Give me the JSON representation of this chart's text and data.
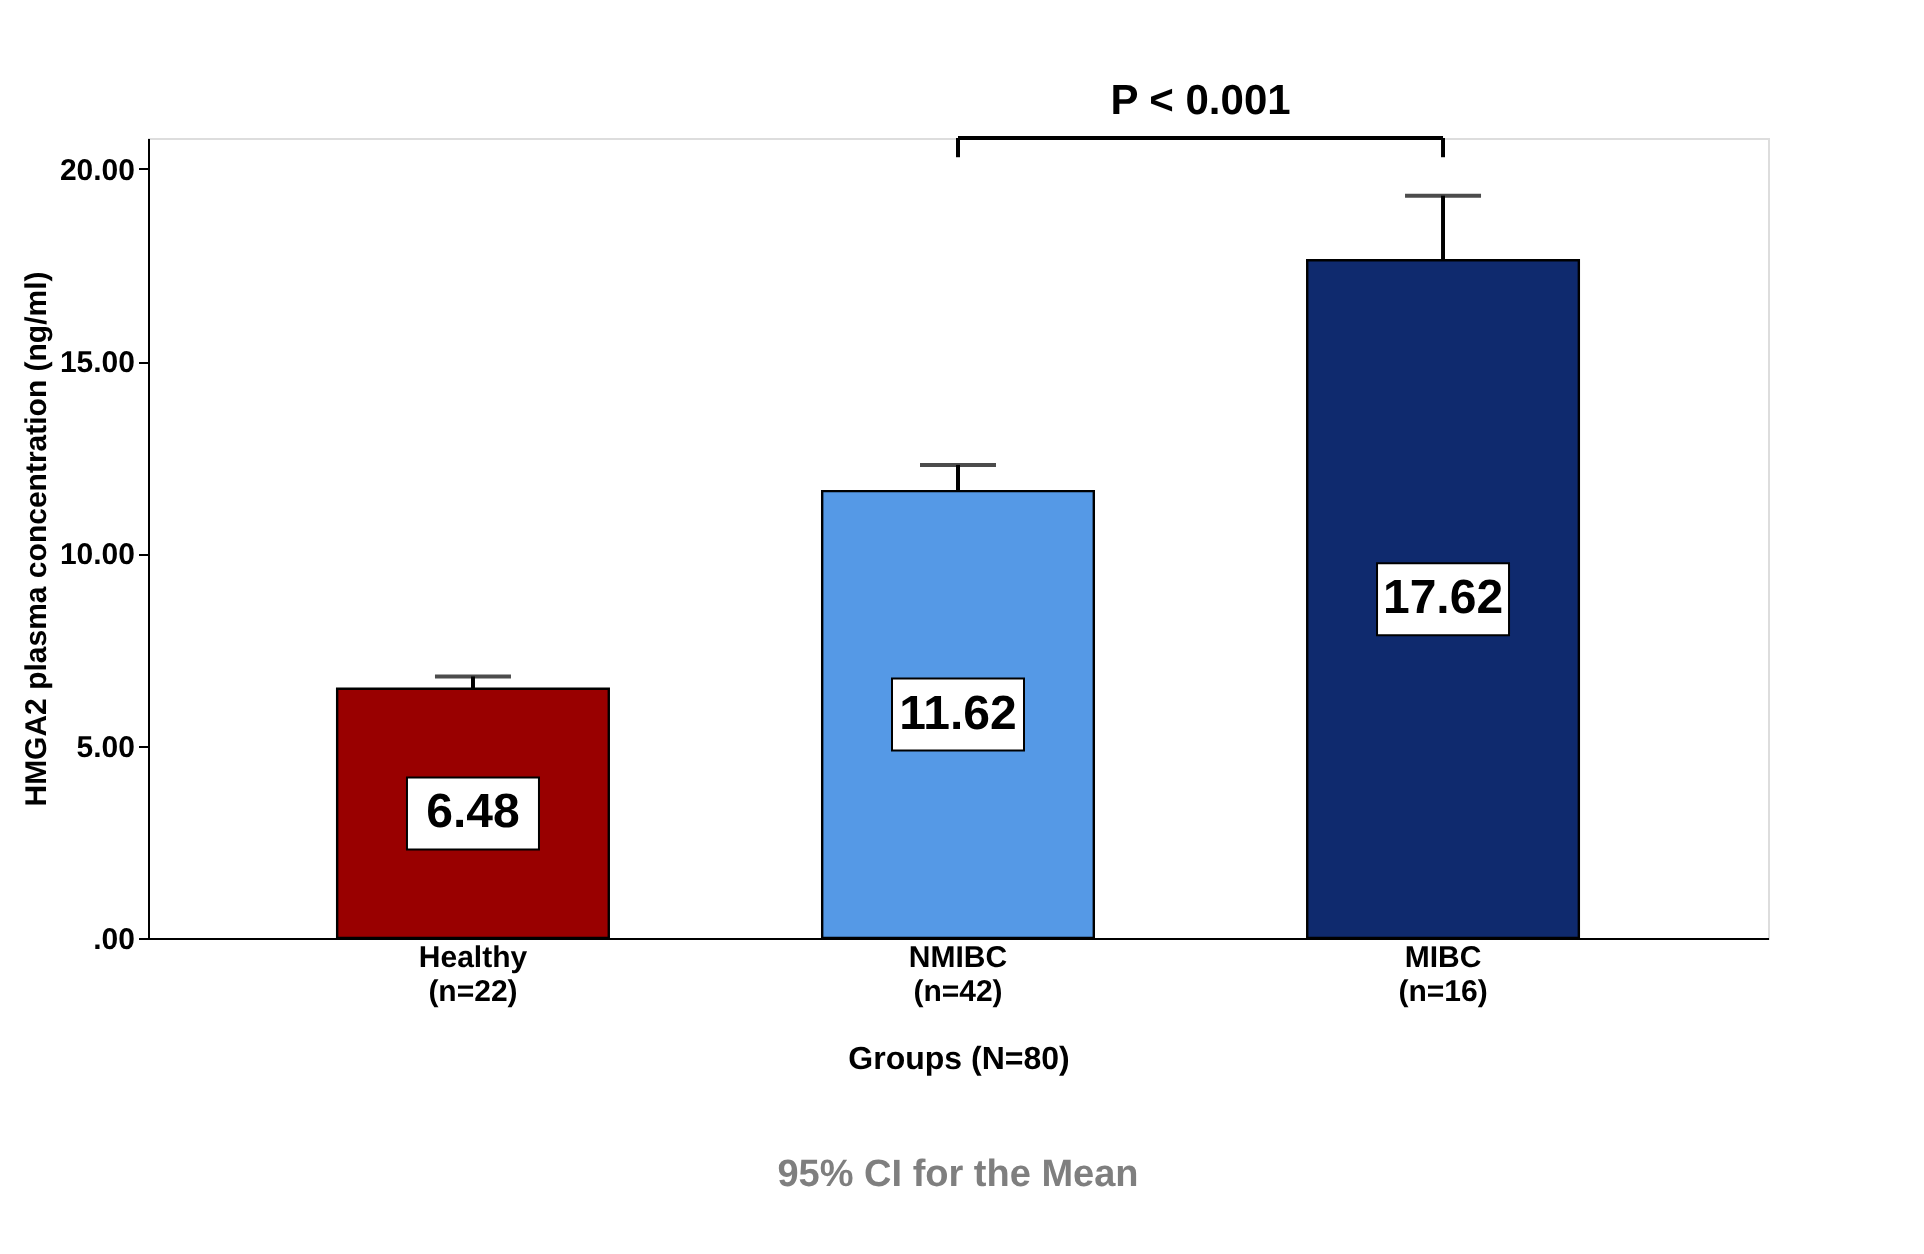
{
  "chart_data": {
    "type": "bar",
    "xlabel": "Groups (N=80)",
    "ylabel": "HMGA2 plasma concentration (ng/ml)",
    "categories": [
      "Healthy\n(n=22)",
      "NMIBC\n(n=42)",
      "MIBC\n(n=16)"
    ],
    "values": [
      6.48,
      11.62,
      17.62
    ],
    "colors": [
      "#990000",
      "#5599e6",
      "#0f2a6e"
    ],
    "errors": [
      [
        6.48,
        6.8
      ],
      [
        11.62,
        12.3
      ],
      [
        17.62,
        19.3
      ]
    ],
    "data_labels": true,
    "ylim": [
      0,
      20.8
    ],
    "yticks": [
      {
        "value": 0,
        "label": ".00"
      },
      {
        "value": 5,
        "label": "5.00"
      },
      {
        "value": 10,
        "label": "10.00"
      },
      {
        "value": 15,
        "label": "15.00"
      },
      {
        "value": 20,
        "label": "20.00"
      }
    ],
    "grid": false,
    "annotations": [
      "P < 0.001",
      "95% CI for the Mean"
    ]
  }
}
